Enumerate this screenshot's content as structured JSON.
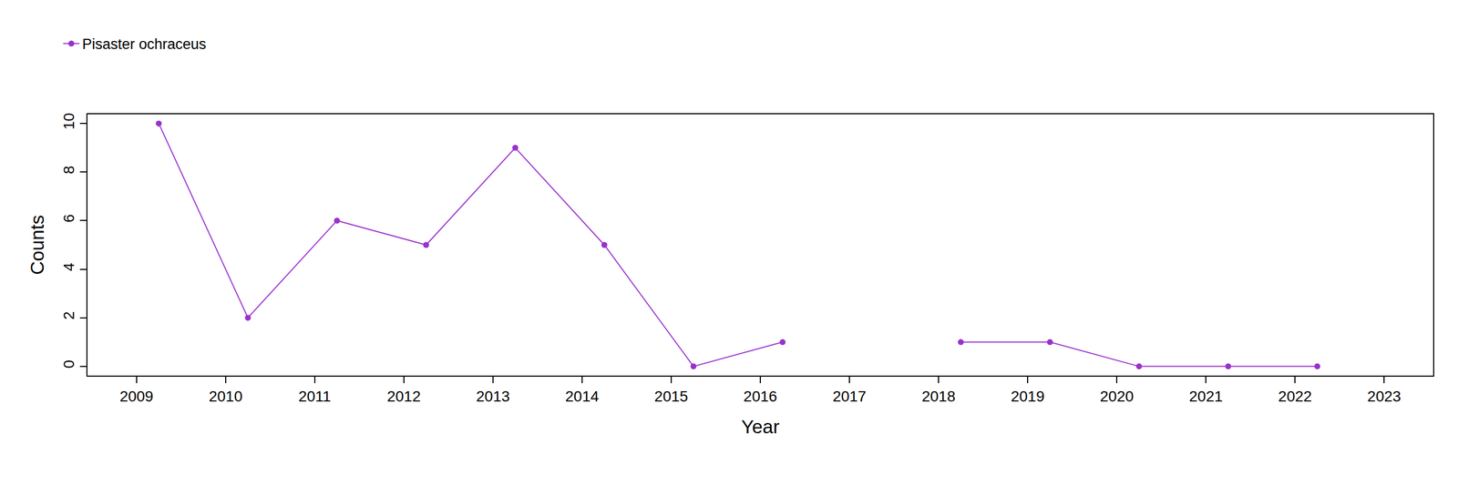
{
  "chart_data": {
    "type": "line",
    "x_label": "Year",
    "y_label": "Counts",
    "x": [
      2009.25,
      2010.25,
      2011.25,
      2012.25,
      2013.25,
      2014.25,
      2015.25,
      2016.25,
      2017.25,
      2018.25,
      2019.25,
      2020.25,
      2021.25,
      2022.25
    ],
    "series": [
      {
        "name": "Pisaster ochraceus",
        "color": "#9932cc",
        "marker": "circle",
        "line_style": "solid",
        "values": [
          10,
          2,
          6,
          5,
          9,
          5,
          0,
          1,
          null,
          1,
          1,
          0,
          0,
          0
        ]
      }
    ],
    "xlim": [
      2008.45,
      2023.55
    ],
    "xticks": [
      2009,
      2010,
      2011,
      2012,
      2013,
      2014,
      2015,
      2016,
      2017,
      2018,
      2019,
      2020,
      2021,
      2022,
      2023
    ],
    "ylim": [
      -0.38,
      10.38
    ],
    "yticks": [
      0,
      2,
      4,
      6,
      8,
      10
    ],
    "grid": false,
    "legend": "top-left"
  }
}
